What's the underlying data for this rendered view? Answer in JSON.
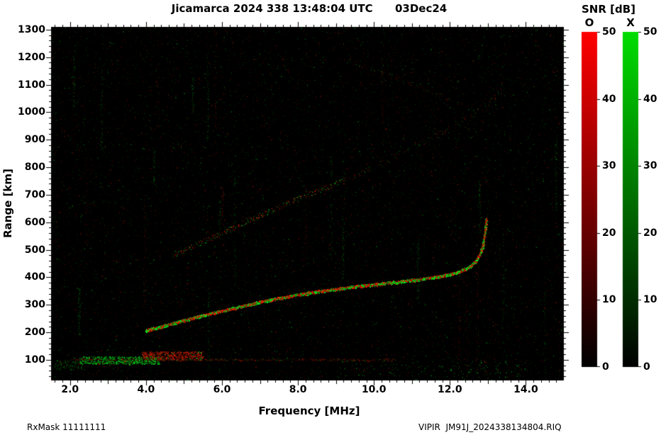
{
  "figure": {
    "title": "Jicamarca 2024 338 13:48:04 UTC      03Dec24",
    "footer_left": "RxMask 11111111",
    "footer_right": "VIPIR  JM91J_2024338134804.RIQ"
  },
  "chart_data": {
    "type": "heatmap",
    "title": "Jicamarca 2024 338 13:48:04 UTC 03Dec24",
    "xlabel": "Frequency [MHz]",
    "ylabel": "Range [km]",
    "xlim": [
      1.5,
      15.0
    ],
    "ylim": [
      25,
      1310
    ],
    "background": "#000000",
    "grid": false,
    "xticks": {
      "values": [
        2,
        4,
        6,
        8,
        10,
        12,
        14
      ],
      "labels": [
        "2.0",
        "4.0",
        "6.0",
        "8.0",
        "10.0",
        "12.0",
        "14.0"
      ]
    },
    "yticks": {
      "values": [
        1300,
        1200,
        1100,
        1000,
        900,
        800,
        700,
        600,
        500,
        400,
        300,
        200,
        100
      ],
      "labels": [
        "1300",
        "1200",
        "1100",
        "1000",
        "900",
        "800",
        "700",
        "600",
        "500",
        "400",
        "300",
        "200",
        "100"
      ]
    },
    "colorbar": {
      "title": "SNR [dB]",
      "range": [
        0,
        50
      ],
      "ticks": [
        50,
        40,
        30,
        20,
        10,
        0
      ],
      "tick_labels": [
        "50",
        "40",
        "30",
        "20",
        "10",
        "0"
      ],
      "bars": [
        {
          "label": "O",
          "mode": "O-mode",
          "color": "#ff0000"
        },
        {
          "label": "X",
          "mode": "X-mode",
          "color": "#00dd00"
        }
      ]
    },
    "traces": [
      {
        "name": "f-region-main-echo",
        "points": [
          [
            4.0,
            206
          ],
          [
            4.4,
            220
          ],
          [
            4.8,
            235
          ],
          [
            5.2,
            250
          ],
          [
            5.6,
            264
          ],
          [
            6.0,
            277
          ],
          [
            6.4,
            290
          ],
          [
            6.8,
            303
          ],
          [
            7.2,
            315
          ],
          [
            7.6,
            326
          ],
          [
            8.0,
            336
          ],
          [
            8.4,
            345
          ],
          [
            8.8,
            353
          ],
          [
            9.2,
            360
          ],
          [
            9.6,
            367
          ],
          [
            10.0,
            373
          ],
          [
            10.4,
            379
          ],
          [
            10.8,
            385
          ],
          [
            11.2,
            392
          ],
          [
            11.6,
            400
          ],
          [
            12.0,
            410
          ],
          [
            12.3,
            422
          ],
          [
            12.55,
            440
          ],
          [
            12.7,
            460
          ],
          [
            12.8,
            485
          ],
          [
            12.87,
            515
          ],
          [
            12.92,
            552
          ],
          [
            12.95,
            590
          ],
          [
            12.96,
            612
          ]
        ],
        "density": 5,
        "jitter": 2,
        "size": 2,
        "red_frac": 0.52,
        "bright": [
          130,
          255
        ],
        "base": "rgba(190,25,0,0.9)",
        "base_width": 2.5
      },
      {
        "name": "oblique-echo-lower",
        "points": [
          [
            4.75,
            482
          ],
          [
            5.3,
            516
          ],
          [
            6.0,
            560
          ],
          [
            6.7,
            604
          ],
          [
            7.4,
            648
          ],
          [
            8.1,
            690
          ],
          [
            8.8,
            728
          ],
          [
            9.3,
            755
          ]
        ],
        "density": 1.4,
        "jitter": 4,
        "size": 1,
        "red_frac": 0.6,
        "bright": [
          50,
          210
        ]
      },
      {
        "name": "oblique-echo-upper",
        "points": [
          [
            9.3,
            755
          ],
          [
            10.2,
            815
          ],
          [
            11.0,
            870
          ],
          [
            11.8,
            925
          ],
          [
            12.6,
            990
          ],
          [
            13.35,
            1070
          ]
        ],
        "density": 0.55,
        "jitter": 5,
        "size": 1,
        "red_frac": 0.5,
        "bright": [
          35,
          150
        ]
      },
      {
        "name": "faint-top-diagonal",
        "points": [
          [
            9.2,
            1195
          ],
          [
            10.4,
            1135
          ],
          [
            11.6,
            1068
          ],
          [
            12.3,
            1030
          ]
        ],
        "density": 0.5,
        "jitter": 3,
        "size": 1,
        "red_frac": 0.75,
        "bright": [
          35,
          120
        ]
      }
    ],
    "clusters": [
      {
        "name": "e-region-green-patch",
        "f": [
          2.25,
          4.35
        ],
        "r": [
          84,
          112
        ],
        "n": 1000,
        "red_frac": 0.05,
        "bright": [
          45,
          215
        ]
      },
      {
        "name": "e-region-red-patch",
        "f": [
          3.9,
          5.5
        ],
        "r": [
          98,
          130
        ],
        "n": 750,
        "red_frac": 0.92,
        "bright": [
          60,
          215
        ]
      },
      {
        "name": "e-region-horizontal-line",
        "f": [
          2.0,
          10.6
        ],
        "r": [
          96,
          104
        ],
        "n": 550,
        "red_frac": 0.8,
        "bright": [
          30,
          110
        ]
      },
      {
        "name": "bottom-right-green-speckle",
        "f": [
          9.0,
          14.0
        ],
        "r": [
          35,
          95
        ],
        "n": 160,
        "red_frac": 0.1,
        "bright": [
          40,
          150
        ]
      },
      {
        "name": "bottom-left-dim-green",
        "f": [
          1.6,
          2.4
        ],
        "r": [
          65,
          100
        ],
        "n": 140,
        "red_frac": 0.1,
        "bright": [
          35,
          120
        ]
      }
    ],
    "noise": {
      "seed": 1203,
      "count": 9000,
      "dim": [
        18,
        70
      ],
      "bright_count": 550,
      "bright": [
        70,
        165
      ],
      "streaks": {
        "count": 26,
        "bright": [
          25,
          85
        ]
      }
    }
  }
}
